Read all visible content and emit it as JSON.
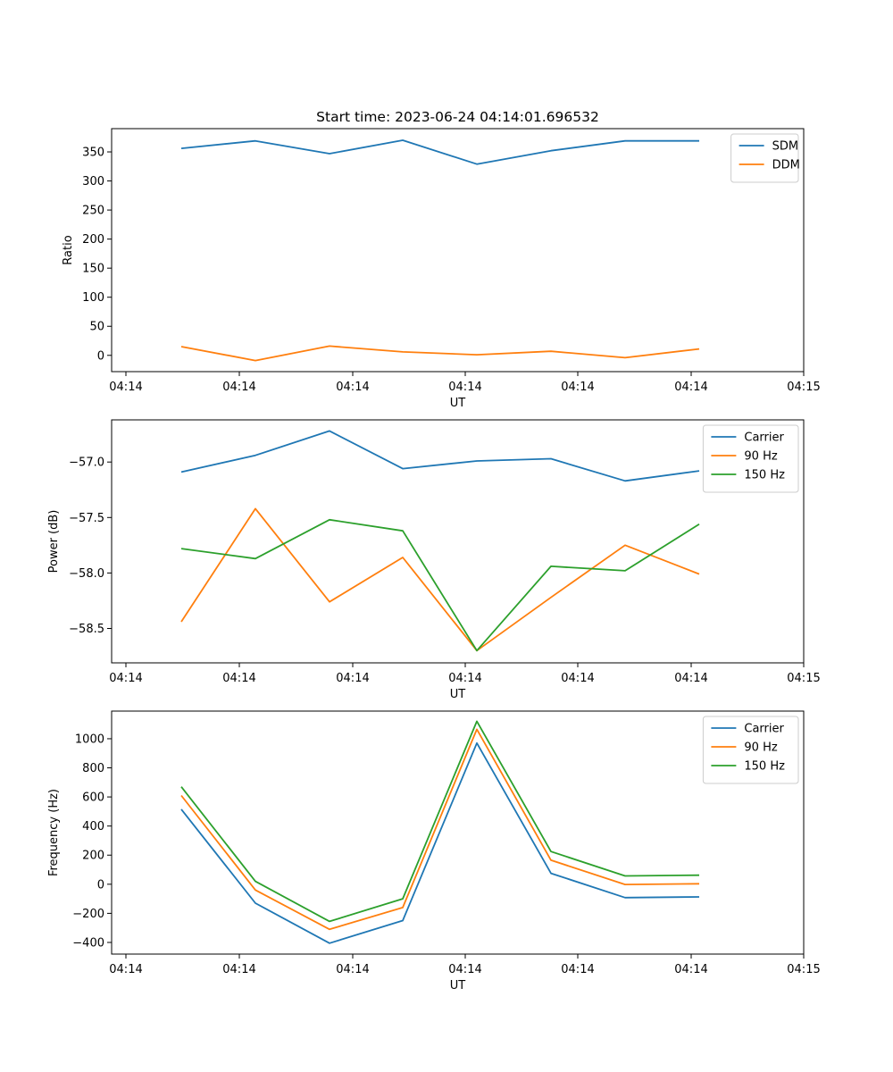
{
  "chart_data": [
    {
      "type": "line",
      "title": "Start time: 2023-06-24 04:14:01.696532",
      "xlabel": "UT",
      "ylabel": "Ratio",
      "xticklabels": [
        "04:14",
        "04:14",
        "04:14",
        "04:14",
        "04:14",
        "04:14",
        "04:14",
        "04:15"
      ],
      "yticks": [
        0,
        50,
        100,
        150,
        200,
        250,
        300,
        350
      ],
      "ylim": [
        -28,
        390
      ],
      "legend_position": "top-right",
      "series": [
        {
          "name": "SDM",
          "color": "#1f77b4",
          "values": [
            356,
            369,
            347,
            370,
            329,
            352,
            369,
            369
          ]
        },
        {
          "name": "DDM",
          "color": "#ff7f0e",
          "values": [
            15,
            -9,
            16,
            6,
            1,
            7,
            -4,
            11
          ]
        }
      ]
    },
    {
      "type": "line",
      "title": "",
      "xlabel": "UT",
      "ylabel": "Power (dB)",
      "xticklabels": [
        "04:14",
        "04:14",
        "04:14",
        "04:14",
        "04:14",
        "04:14",
        "04:14",
        "04:15"
      ],
      "yticks": [
        -57.0,
        -57.5,
        -58.0,
        -58.5
      ],
      "yticklabels": [
        "−57.0",
        "−57.5",
        "−58.0",
        "−58.5"
      ],
      "ylim": [
        -58.81,
        -56.62
      ],
      "legend_position": "top-right",
      "series": [
        {
          "name": "Carrier",
          "color": "#1f77b4",
          "values": [
            -57.09,
            -56.94,
            -56.72,
            -57.06,
            -56.99,
            -56.97,
            -57.17,
            -57.08
          ]
        },
        {
          "name": "90 Hz",
          "color": "#ff7f0e",
          "values": [
            -58.44,
            -57.42,
            -58.26,
            -57.86,
            -58.7,
            -58.22,
            -57.75,
            -58.01
          ]
        },
        {
          "name": "150 Hz",
          "color": "#2ca02c",
          "values": [
            -57.78,
            -57.87,
            -57.52,
            -57.62,
            -58.7,
            -57.94,
            -57.98,
            -57.56
          ]
        }
      ]
    },
    {
      "type": "line",
      "title": "",
      "xlabel": "UT",
      "ylabel": "Frequency (Hz)",
      "xticklabels": [
        "04:14",
        "04:14",
        "04:14",
        "04:14",
        "04:14",
        "04:14",
        "04:14",
        "04:15"
      ],
      "yticks": [
        -400,
        -200,
        0,
        200,
        400,
        600,
        800,
        1000
      ],
      "yticklabels": [
        "−400",
        "−200",
        "0",
        "200",
        "400",
        "600",
        "800",
        "1000"
      ],
      "ylim": [
        -480,
        1190
      ],
      "legend_position": "top-right",
      "series": [
        {
          "name": "Carrier",
          "color": "#1f77b4",
          "values": [
            515,
            -130,
            -405,
            -250,
            970,
            75,
            -92,
            -87
          ]
        },
        {
          "name": "90 Hz",
          "color": "#ff7f0e",
          "values": [
            610,
            -40,
            -310,
            -160,
            1065,
            165,
            -2,
            3
          ]
        },
        {
          "name": "150 Hz",
          "color": "#2ca02c",
          "values": [
            670,
            20,
            -255,
            -100,
            1120,
            225,
            57,
            62
          ]
        }
      ]
    }
  ]
}
